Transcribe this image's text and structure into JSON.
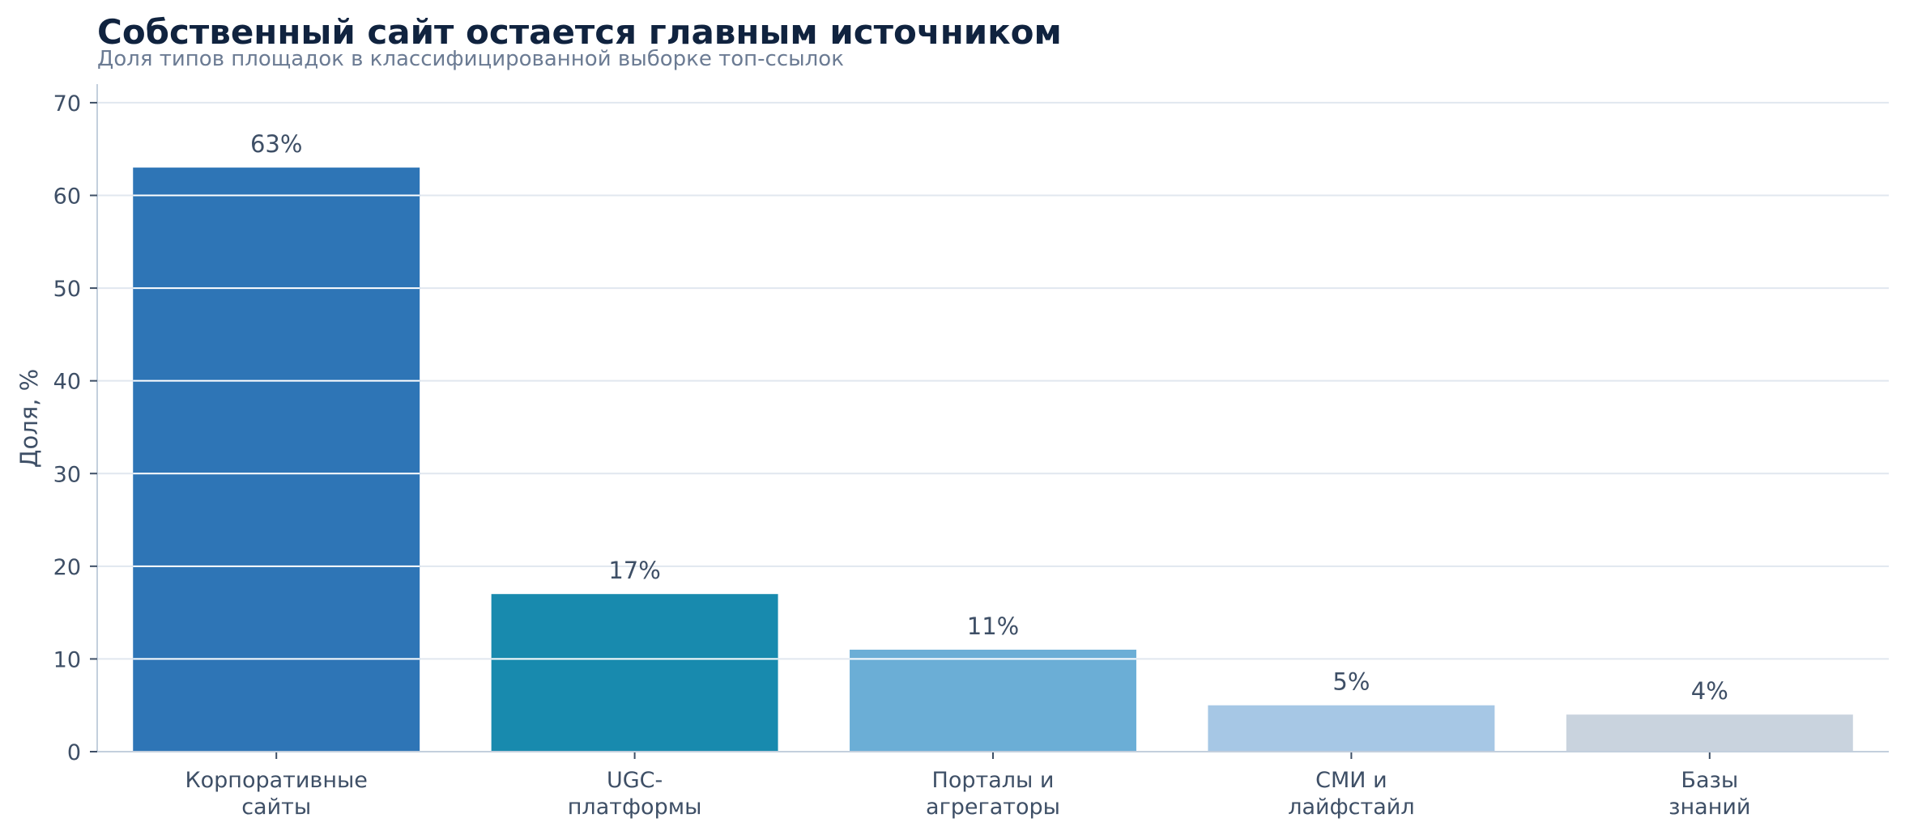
{
  "chart_data": {
    "type": "bar",
    "title": "Собственный сайт остается главным источником",
    "subtitle": "Доля типов площадок в классифицированной выборке топ-ссылок",
    "xlabel": "",
    "ylabel": "Доля, %",
    "ylim": [
      0,
      72
    ],
    "yticks": [
      0,
      10,
      20,
      30,
      40,
      50,
      60,
      70
    ],
    "grid": true,
    "categories": [
      [
        "Корпоративные",
        "сайты"
      ],
      [
        "UGC-",
        "платформы"
      ],
      [
        "Порталы и",
        "агрегаторы"
      ],
      [
        "СМИ и",
        "лайфстайл"
      ],
      [
        "Базы",
        "знаний"
      ]
    ],
    "values": [
      63,
      17,
      11,
      5,
      4
    ],
    "value_labels": [
      "63%",
      "17%",
      "11%",
      "5%",
      "4%"
    ],
    "colors": [
      "#2e75b6",
      "#188aae",
      "#6baed6",
      "#a6c7e5",
      "#c9d3de"
    ],
    "grid_color": "#e1e7ef",
    "axis_color": "#c3cfdd"
  }
}
